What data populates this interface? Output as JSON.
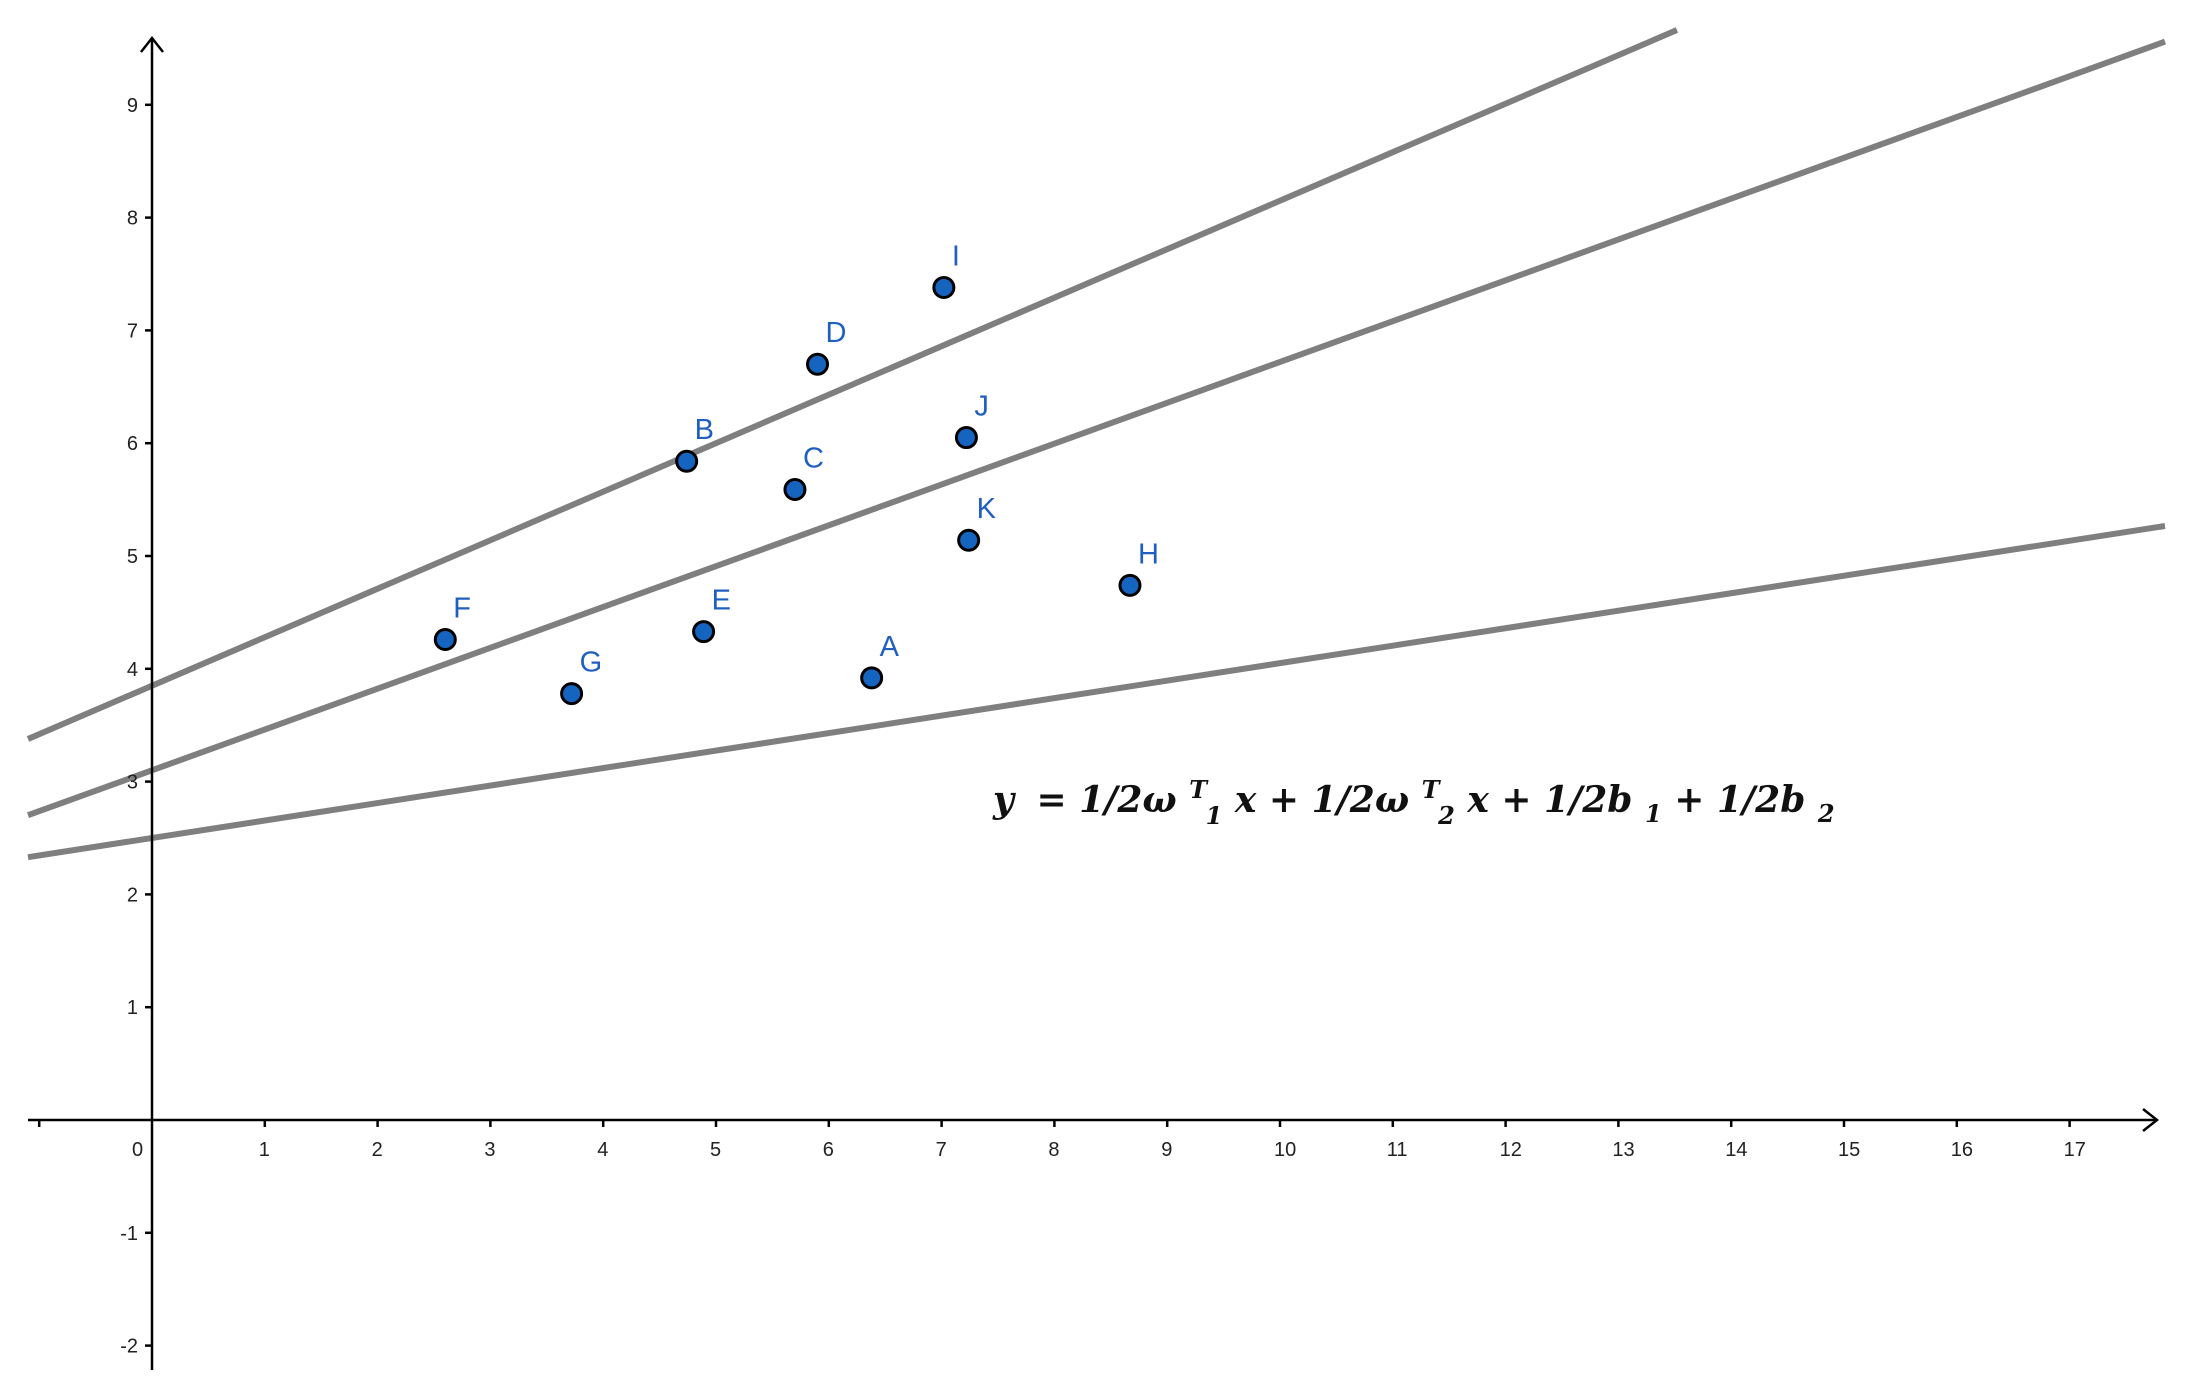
{
  "chart_data": {
    "type": "scatter",
    "title": "",
    "xlabel": "",
    "ylabel": "",
    "xlim": [
      -1.1,
      17.8
    ],
    "ylim": [
      -2.2,
      9.6
    ],
    "grid": false,
    "x_ticks": [
      "0",
      "1",
      "2",
      "3",
      "4",
      "5",
      "6",
      "7",
      "8",
      "9",
      "10",
      "11",
      "12",
      "13",
      "14",
      "15",
      "16",
      "17"
    ],
    "y_ticks": [
      "-2",
      "-1",
      "1",
      "2",
      "3",
      "4",
      "5",
      "6",
      "7",
      "8",
      "9"
    ],
    "points": [
      {
        "label": "A",
        "x": 6.38,
        "y": 3.92
      },
      {
        "label": "B",
        "x": 4.74,
        "y": 5.84
      },
      {
        "label": "C",
        "x": 5.7,
        "y": 5.59
      },
      {
        "label": "D",
        "x": 5.9,
        "y": 6.7
      },
      {
        "label": "E",
        "x": 4.89,
        "y": 4.33
      },
      {
        "label": "F",
        "x": 2.6,
        "y": 4.26
      },
      {
        "label": "G",
        "x": 3.72,
        "y": 3.78
      },
      {
        "label": "H",
        "x": 8.67,
        "y": 4.74
      },
      {
        "label": "I",
        "x": 7.02,
        "y": 7.38
      },
      {
        "label": "J",
        "x": 7.22,
        "y": 6.05
      },
      {
        "label": "K",
        "x": 7.24,
        "y": 5.14
      }
    ],
    "lines": [
      {
        "slope": 0.43,
        "intercept": 3.85
      },
      {
        "slope": 0.362,
        "intercept": 3.1
      },
      {
        "slope": 0.155,
        "intercept": 2.5
      }
    ],
    "annotation": {
      "formula": {
        "y": "y",
        "eq": "= 1/2ω",
        "sub1": "1",
        "sup1": "T",
        "x1": "x + 1/2ω",
        "sub2": "2",
        "sup2": "T",
        "x2": "x + 1/2b",
        "sub3": "1",
        "plus": " + 1/2b",
        "sub4": "2"
      }
    }
  }
}
